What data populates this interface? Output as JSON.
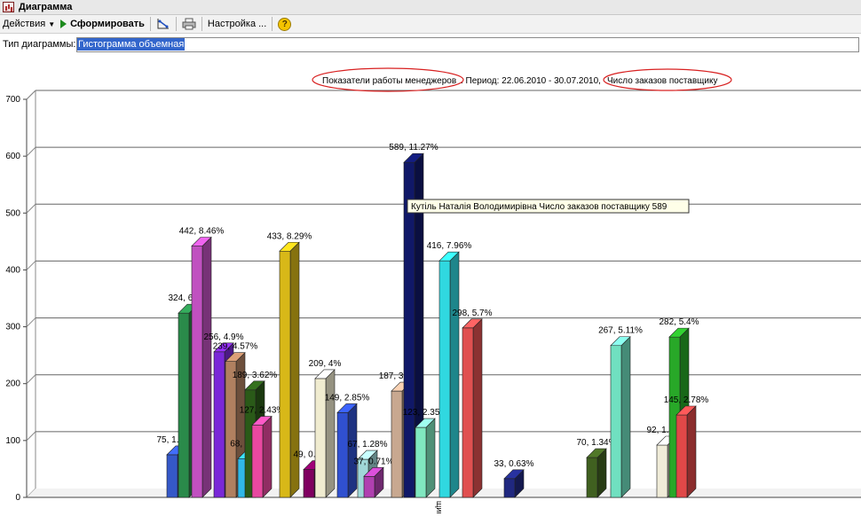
{
  "window": {
    "title": "Диаграмма"
  },
  "toolbar": {
    "actions_label": "Действия",
    "generate_label": "Сформировать",
    "settings_label": "Настройка ..."
  },
  "chart_type": {
    "label": "Тип диаграммы:",
    "value": "Гистограмма объемная"
  },
  "header": {
    "part1": "Показатели работы менеджеров",
    "part2": ". Период:  22.06.2010 - 30.07.2010,",
    "part3": "Число заказов  поставщику"
  },
  "tooltip": {
    "text": "Кутiль Наталiя Володимирiвна Число заказов поставщику 589"
  },
  "axis_category_fragment": "щику",
  "chart_data": {
    "type": "bar",
    "ylim": [
      0,
      700
    ],
    "yticks": [
      0,
      100,
      200,
      300,
      400,
      500,
      600,
      700
    ],
    "grid": true,
    "title": "Показатели работы менеджеров. Период:  22.06.2010 - 30.07.2010, Число заказов  поставщику",
    "bars": [
      {
        "value": 75,
        "label": "75, 1.44%",
        "color": "#3558c8"
      },
      {
        "value": 324,
        "label": "324, 6.2%",
        "color": "#2a8a4a"
      },
      {
        "value": 442,
        "label": "442, 8.46%",
        "color": "#c050c0"
      },
      {
        "value": 256,
        "label": "256, 4.9%",
        "color": "#7a28d8"
      },
      {
        "value": 239,
        "label": "239, 4.57%",
        "color": "#b08060"
      },
      {
        "value": 68,
        "label": "68, 1.3%",
        "color": "#30b8e8"
      },
      {
        "value": 189,
        "label": "189, 3.62%",
        "color": "#2a5a18"
      },
      {
        "value": 127,
        "label": "127, 2.43%",
        "color": "#e848a0"
      },
      {
        "value": 433,
        "label": "433, 8.29%",
        "color": "#d8b818"
      },
      {
        "value": 49,
        "label": "49, 0.94%",
        "color": "#800060"
      },
      {
        "value": 209,
        "label": "209, 4%",
        "color": "#f0ecd0"
      },
      {
        "value": 149,
        "label": "149, 2.85%",
        "color": "#3050d0"
      },
      {
        "value": 67,
        "label": "67, 1.28%",
        "color": "#a0d8d8"
      },
      {
        "value": 37,
        "label": "37, 0.71%",
        "color": "#b040b0"
      },
      {
        "value": 187,
        "label": "187, 3.58%",
        "color": "#c8a890"
      },
      {
        "value": 589,
        "label": "589, 11.27%",
        "color": "#101868"
      },
      {
        "value": 123,
        "label": "123, 2.35%",
        "color": "#80e8c0"
      },
      {
        "value": 416,
        "label": "416, 7.96%",
        "color": "#30d8e0"
      },
      {
        "value": 298,
        "label": "298, 5.7%",
        "color": "#e05050"
      },
      {
        "value": 33,
        "label": "33, 0.63%",
        "color": "#202880"
      },
      {
        "value": 70,
        "label": "70, 1.34%",
        "color": "#406020"
      },
      {
        "value": 267,
        "label": "267, 5.11%",
        "color": "#70e0c0"
      },
      {
        "value": 92,
        "label": "92, 1.76%",
        "color": "#f0ecd8"
      },
      {
        "value": 282,
        "label": "282, 5.4%",
        "color": "#28a828"
      },
      {
        "value": 145,
        "label": "145, 2.78%",
        "color": "#e04848"
      }
    ]
  }
}
